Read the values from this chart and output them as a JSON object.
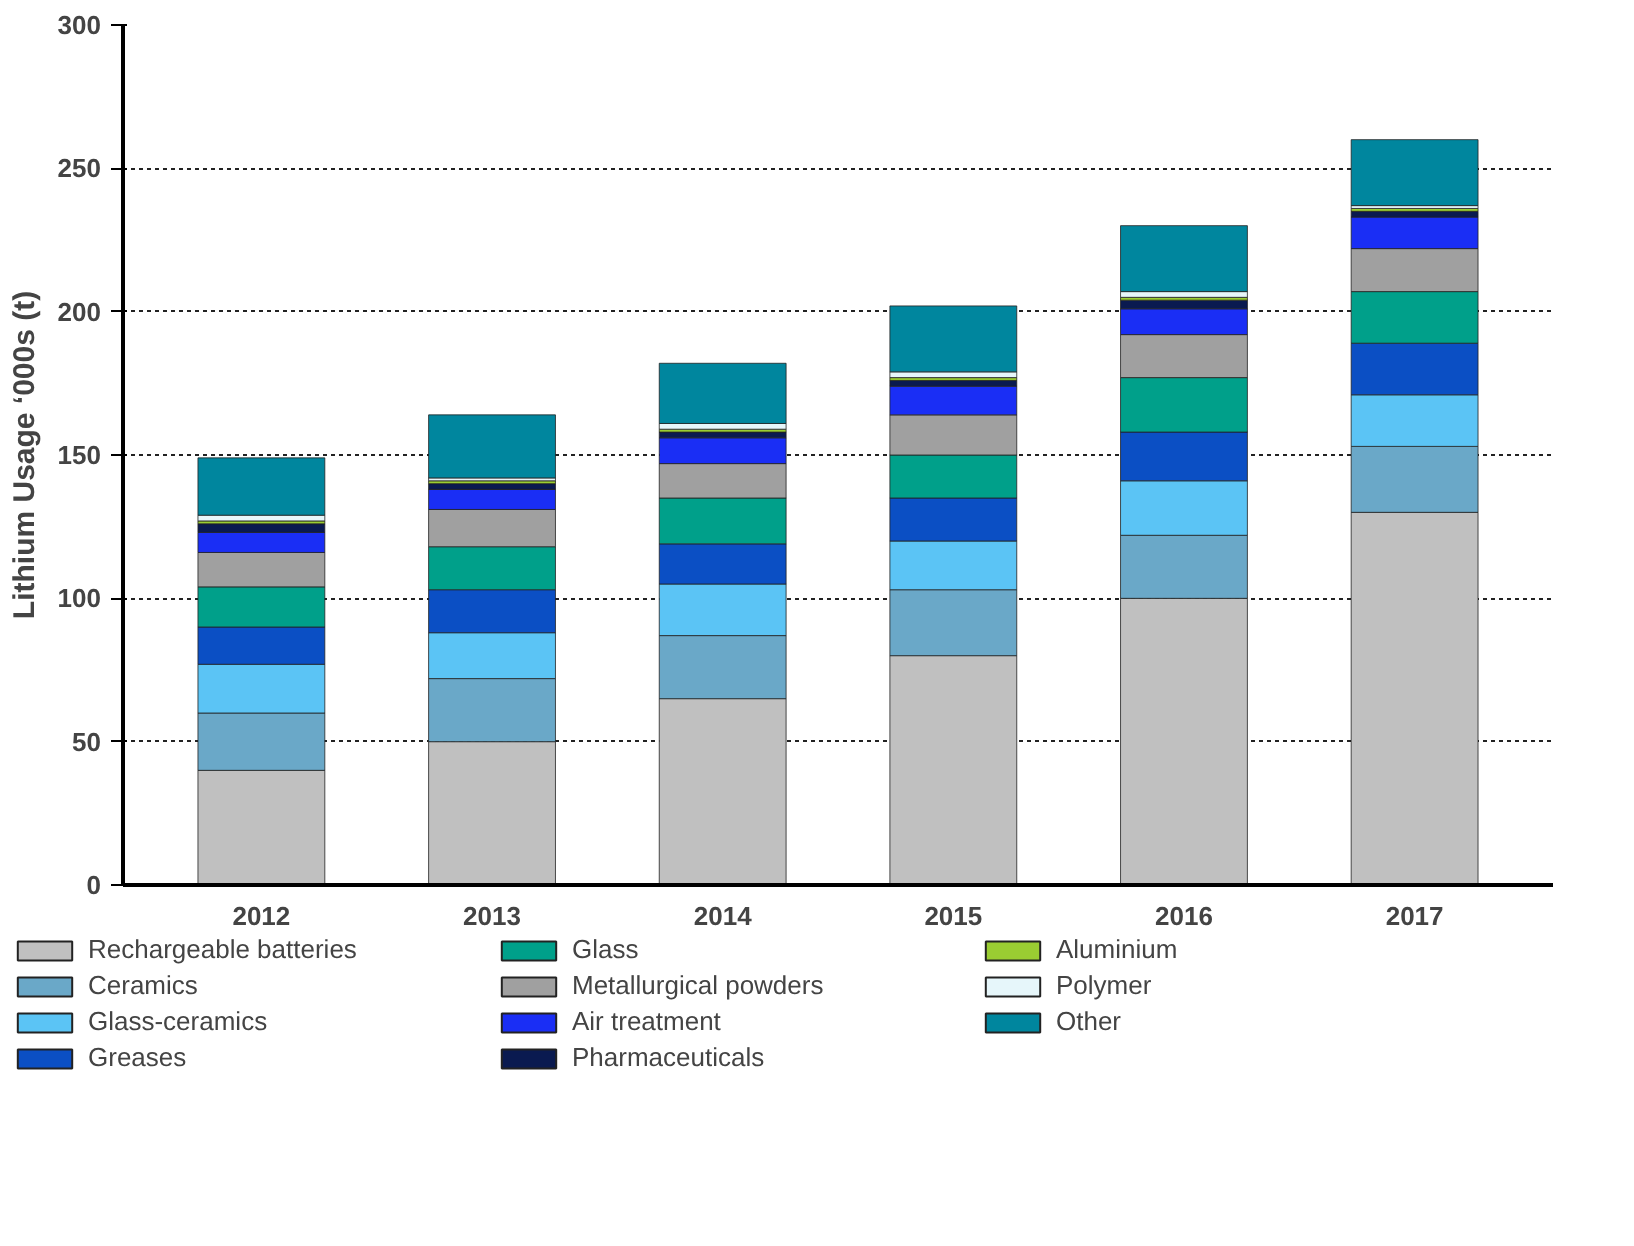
{
  "chart_data": {
    "type": "bar",
    "stacked": true,
    "ylabel": "Lithium Usage ‘000s (t)",
    "categories": [
      "2012",
      "2013",
      "2014",
      "2015",
      "2016",
      "2017"
    ],
    "ylim": [
      0,
      300
    ],
    "yticks": [
      0,
      50,
      100,
      150,
      200,
      250,
      300
    ],
    "grid": "y",
    "legend": "bottom",
    "series": [
      {
        "name": "Rechargeable batteries",
        "color": "#c0c0c0",
        "values": [
          40,
          50,
          65,
          80,
          100,
          130
        ]
      },
      {
        "name": "Ceramics",
        "color": "#6aa8c8",
        "values": [
          20,
          22,
          22,
          23,
          22,
          23
        ]
      },
      {
        "name": "Glass-ceramics",
        "color": "#5bc4f5",
        "values": [
          17,
          16,
          18,
          17,
          19,
          18
        ]
      },
      {
        "name": "Greases",
        "color": "#0b4fc4",
        "values": [
          13,
          15,
          14,
          15,
          17,
          18
        ]
      },
      {
        "name": "Glass",
        "color": "#00a08a",
        "values": [
          14,
          15,
          16,
          15,
          19,
          18
        ]
      },
      {
        "name": "Metallurgical powders",
        "color": "#a0a0a0",
        "values": [
          12,
          13,
          12,
          14,
          15,
          15
        ]
      },
      {
        "name": "Air treatment",
        "color": "#1a2ef5",
        "values": [
          7,
          7,
          9,
          10,
          9,
          11
        ]
      },
      {
        "name": "Pharmaceuticals",
        "color": "#0a1a50",
        "values": [
          3,
          2,
          2,
          2,
          3,
          2
        ]
      },
      {
        "name": "Aluminium",
        "color": "#9acd32",
        "values": [
          1,
          1,
          1,
          1,
          1,
          1
        ]
      },
      {
        "name": "Polymer",
        "color": "#e6f6fa",
        "values": [
          2,
          1,
          2,
          2,
          2,
          1
        ]
      },
      {
        "name": "Other",
        "color": "#00869e",
        "values": [
          20,
          22,
          21,
          23,
          23,
          23
        ]
      }
    ]
  }
}
